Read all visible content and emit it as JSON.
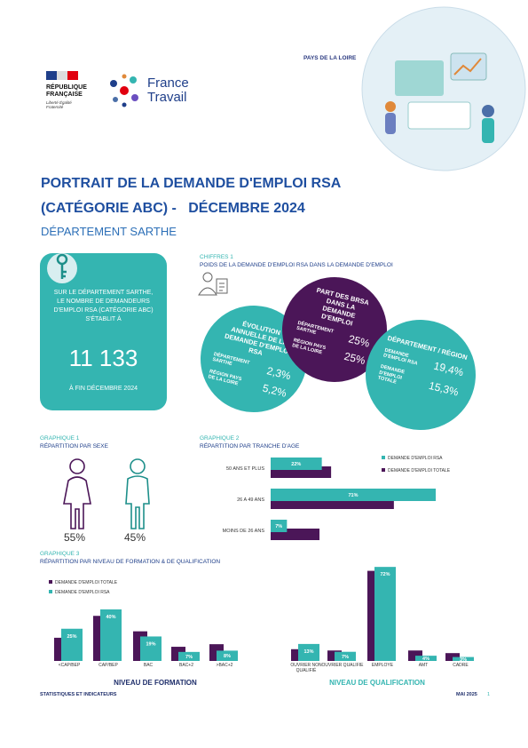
{
  "header": {
    "republique": "RÉPUBLIQUE FRANÇAISE",
    "devise": "Liberté Égalité Fraternité",
    "brand": "France Travail",
    "region": "PAYS DE LA LOIRE"
  },
  "title": {
    "line1": "PORTRAIT DE LA DEMANDE D'EMPLOI RSA",
    "line2": "(CATÉGORIE ABC) -   DÉCEMBRE 2024",
    "subtitle": "DÉPARTEMENT SARTHE"
  },
  "key_figure": {
    "text": "SUR LE DÉPARTEMENT SARTHE, LE NOMBRE DE DEMANDEURS D'EMPLOI RSA (CATÉGORIE ABC) S'ÉTABLIT À",
    "value": "11 133",
    "date": "À FIN DÉCEMBRE 2024"
  },
  "chiffres": {
    "label": "CHIFFRES 1",
    "title": "POIDS DE LA DEMANDE D'EMPLOI RSA DANS LA DEMANDE D'EMPLOI",
    "evolution": {
      "title": "ÉVOLUTION ANNUELLE DE LA DEMANDE D'EMPLOI RSA",
      "rows": [
        [
          "DÉPARTEMENT SARTHE",
          "2,3%"
        ],
        [
          "RÉGION PAYS DE LA LOIRE",
          "5,2%"
        ]
      ]
    },
    "part": {
      "title": "PART DES BRSA DANS LA DEMANDE D'EMPLOI",
      "rows": [
        [
          "DÉPARTEMENT SARTHE",
          "25%"
        ],
        [
          "RÉGION PAYS DE LA LOIRE",
          "25%"
        ]
      ]
    },
    "ratio": {
      "title": "DÉPARTEMENT / RÉGION",
      "rows": [
        [
          "DEMANDE D'EMPLOI RSA",
          "19,4%"
        ],
        [
          "DEMANDE D'EMPLOI TOTALE",
          "15,3%"
        ]
      ]
    }
  },
  "sexe": {
    "label": "GRAPHIQUE 1",
    "title": "RÉPARTITION PAR SEXE",
    "women": "55%",
    "men": "45%"
  },
  "chart_data": [
    {
      "type": "hbar",
      "label": "GRAPHIQUE 2",
      "title": "RÉPARTITION PAR TRANCHE D'AGE",
      "categories": [
        "50 ANS ET PLUS",
        "26 A 49 ANS",
        "MOINS DE 26 ANS"
      ],
      "series": [
        {
          "name": "DEMANDE D'EMPLOI RSA",
          "color": "#34b5b1",
          "values": [
            22,
            71,
            7
          ],
          "value_labels": [
            "22%",
            "71%",
            "7%"
          ]
        },
        {
          "name": "DEMANDE D'EMPLOI TOTALE",
          "color": "#4b1658",
          "values": [
            26,
            53,
            21
          ]
        }
      ]
    },
    {
      "type": "bar",
      "label": "GRAPHIQUE 3",
      "title": "RÉPARTITION PAR NIVEAU DE FORMATION & DE QUALIFICATION",
      "xlabel": "NIVEAU DE FORMATION",
      "categories": [
        "<CAP/BEP",
        "CAP/BEP",
        "BAC",
        "BAC+2",
        ">BAC+2"
      ],
      "series": [
        {
          "name": "DEMANDE D'EMPLOI TOTALE",
          "color": "#4b1658",
          "values": [
            18,
            35,
            23,
            11,
            13
          ]
        },
        {
          "name": "DEMANDE D'EMPLOI RSA",
          "color": "#34b5b1",
          "values": [
            25,
            40,
            19,
            7,
            8
          ],
          "value_labels": [
            "25%",
            "40%",
            "19%",
            "7%",
            "8%"
          ]
        }
      ]
    },
    {
      "type": "bar",
      "xlabel": "NIVEAU DE QUALIFICATION",
      "categories": [
        "OUVRIER NON QUALIFIÉ",
        "OUVRIER QUALIFIÉ",
        "EMPLOYÉ",
        "AMT",
        "CADRE"
      ],
      "series": [
        {
          "color": "#4b1658",
          "values": [
            9,
            8,
            69,
            8,
            6
          ]
        },
        {
          "color": "#34b5b1",
          "values": [
            13,
            7,
            72,
            4,
            3
          ],
          "value_labels": [
            "13%",
            "7%",
            "72%",
            "4%",
            "3%"
          ]
        }
      ]
    }
  ],
  "footer": {
    "left": "STATISTIQUES ET INDICATEURS",
    "date": "MAI 2025",
    "page": "1"
  }
}
